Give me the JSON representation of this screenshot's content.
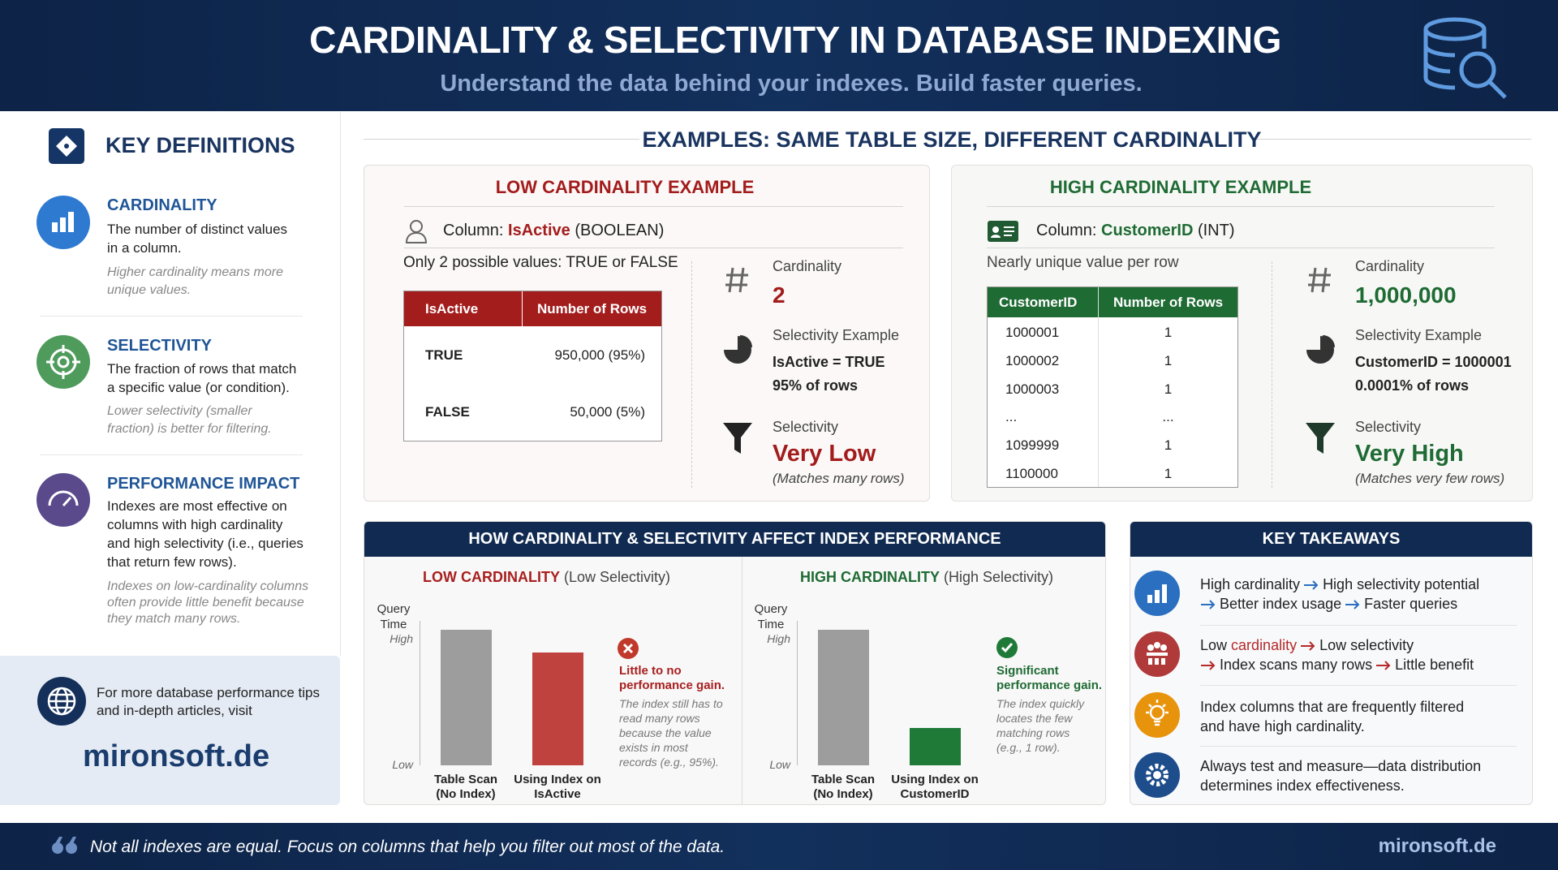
{
  "header": {
    "title": "CARDINALITY & SELECTIVITY IN DATABASE INDEXING",
    "subtitle": "Understand the data behind your indexes. Build faster queries."
  },
  "sidebar": {
    "heading": "KEY DEFINITIONS",
    "definitions": [
      {
        "title": "CARDINALITY",
        "description": "The number of distinct values\nin a column.",
        "note": "Higher cardinality means more\nunique values."
      },
      {
        "title": "SELECTIVITY",
        "description": "The fraction of rows that match\na specific value (or condition).",
        "note": "Lower selectivity (smaller\nfraction) is better for filtering."
      },
      {
        "title": "PERFORMANCE IMPACT",
        "description": "Indexes are most effective on\ncolumns with high cardinality\nand high selectivity (i.e., queries\nthat return few rows).",
        "note": "Indexes on low-cardinality columns\noften provide little benefit because\nthey match many rows."
      }
    ],
    "promo": {
      "text": "For more database performance tips\nand in-depth articles, visit",
      "link": "mironsoft.de"
    }
  },
  "examples": {
    "heading": "EXAMPLES: SAME TABLE SIZE, DIFFERENT CARDINALITY",
    "low": {
      "title": "LOW CARDINALITY EXAMPLE",
      "column_label": "Column:",
      "column_name": "IsActive",
      "column_type": "(BOOLEAN)",
      "note": "Only 2 possible values: TRUE or FALSE",
      "table": {
        "header": [
          "IsActive",
          "Number of Rows"
        ],
        "rows": [
          [
            "TRUE",
            "950,000 (95%)"
          ],
          [
            "FALSE",
            "50,000 (5%)"
          ]
        ]
      },
      "cardinality_label": "Cardinality",
      "cardinality": "2",
      "selectivity_example_label": "Selectivity Example",
      "selectivity_example": "IsActive = TRUE\n95% of rows",
      "selectivity_label": "Selectivity",
      "selectivity": "Very Low",
      "selectivity_note": "(Matches many rows)"
    },
    "high": {
      "title": "HIGH CARDINALITY EXAMPLE",
      "column_label": "Column:",
      "column_name": "CustomerID",
      "column_type": "(INT)",
      "note": "Nearly unique value per row",
      "table": {
        "header": [
          "CustomerID",
          "Number of Rows"
        ],
        "rows": [
          [
            "1000001",
            "1"
          ],
          [
            "1000002",
            "1"
          ],
          [
            "1000003",
            "1"
          ],
          [
            "...",
            "..."
          ],
          [
            "1099999",
            "1"
          ],
          [
            "1100000",
            "1"
          ]
        ]
      },
      "cardinality_label": "Cardinality",
      "cardinality": "1,000,000",
      "selectivity_example_label": "Selectivity Example",
      "selectivity_example": "CustomerID = 1000001\n0.0001% of rows",
      "selectivity_label": "Selectivity",
      "selectivity": "Very High",
      "selectivity_note": "(Matches very few rows)"
    }
  },
  "performance": {
    "title": "HOW CARDINALITY & SELECTIVITY AFFECT INDEX PERFORMANCE"
  },
  "chart_data": [
    {
      "type": "bar",
      "title": "LOW CARDINALITY",
      "subtitle": "(Low Selectivity)",
      "accent": "#a81f1f",
      "y_label": "Query\nTime",
      "categories": [
        "Table Scan\n(No Index)",
        "Using Index on\nIsActive"
      ],
      "values": [
        108,
        90
      ],
      "colors": [
        "#9d9d9d",
        "#c0423f"
      ],
      "ylim": [
        0,
        115
      ],
      "yticks": [
        {
          "value": 0,
          "label": "Low"
        },
        {
          "value": 100,
          "label": "High"
        }
      ],
      "annotation": {
        "title": "Little to no\nperformance gain.",
        "text": "The index still has to\nread many rows\nbecause the value\nexists in most\nrecords (e.g., 95%)."
      }
    },
    {
      "type": "bar",
      "title": "HIGH CARDINALITY",
      "subtitle": "(High Selectivity)",
      "accent": "#1f6b34",
      "y_label": "Query\nTime",
      "categories": [
        "Table Scan\n(No Index)",
        "Using Index on\nCustomerID"
      ],
      "values": [
        108,
        30
      ],
      "colors": [
        "#9d9d9d",
        "#1f7a38"
      ],
      "ylim": [
        0,
        115
      ],
      "yticks": [
        {
          "value": 0,
          "label": "Low"
        },
        {
          "value": 100,
          "label": "High"
        }
      ],
      "annotation": {
        "title": "Significant\nperformance gain.",
        "text": "The index quickly\nlocates the few\nmatching rows\n(e.g., 1 row)."
      }
    }
  ],
  "takeaways": {
    "title": "KEY TAKEAWAYS",
    "items": [
      {
        "parts": [
          "High cardinality",
          "High selectivity potential",
          "Better index usage",
          "Faster queries"
        ]
      },
      {
        "parts": [
          "Low",
          "cardinality",
          "Low selectivity",
          "Index scans many rows",
          "Little benefit"
        ]
      },
      {
        "parts": [
          "Index columns that are frequently filtered\nand have high cardinality."
        ]
      },
      {
        "parts": [
          "Always test and measure—data distribution\ndetermines index effectiveness."
        ]
      }
    ]
  },
  "footer": {
    "quote": "Not all indexes are equal. Focus on columns that help you filter out most of the data.",
    "site": "mironsoft.de"
  }
}
